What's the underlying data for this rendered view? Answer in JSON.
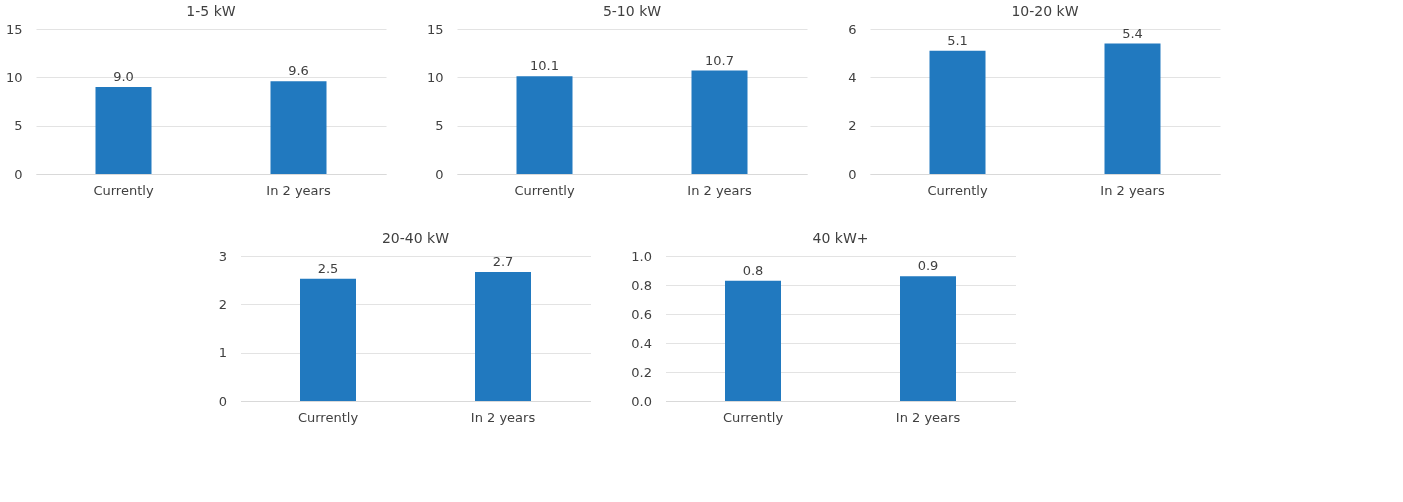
{
  "chart_data": [
    {
      "type": "bar",
      "title": "1-5 kW",
      "categories": [
        "Currently",
        "In 2 years"
      ],
      "values": [
        9.0,
        9.6
      ],
      "value_labels": [
        "9.0",
        "9.6"
      ],
      "color": "#2179bf",
      "ylim": [
        0,
        15
      ],
      "yticks": [
        0,
        5,
        10,
        15
      ],
      "grid": "y"
    },
    {
      "type": "bar",
      "title": "5-10 kW",
      "categories": [
        "Currently",
        "In 2 years"
      ],
      "values": [
        10.1,
        10.7
      ],
      "value_labels": [
        "10.1",
        "10.7"
      ],
      "color": "#2179bf",
      "ylim": [
        0,
        15
      ],
      "yticks": [
        0,
        5,
        10,
        15
      ],
      "grid": "y"
    },
    {
      "type": "bar",
      "title": "10-20 kW",
      "categories": [
        "Currently",
        "In 2 years"
      ],
      "values": [
        5.1,
        5.4
      ],
      "value_labels": [
        "5.1",
        "5.4"
      ],
      "color": "#2179bf",
      "ylim": [
        0,
        6
      ],
      "yticks": [
        0,
        2,
        4,
        6
      ],
      "grid": "y"
    },
    {
      "type": "bar",
      "title": "20-40 kW",
      "categories": [
        "Currently",
        "In 2 years"
      ],
      "values": [
        2.53,
        2.67
      ],
      "value_labels": [
        "2.5",
        "2.7"
      ],
      "color": "#2179bf",
      "ylim": [
        0,
        3
      ],
      "yticks": [
        0,
        1,
        2,
        3
      ],
      "grid": "y"
    },
    {
      "type": "bar",
      "title": "40 kW+",
      "categories": [
        "Currently",
        "In 2 years"
      ],
      "values": [
        0.83,
        0.86
      ],
      "value_labels": [
        "0.8",
        "0.9"
      ],
      "color": "#2179bf",
      "ylim": [
        0,
        1.0
      ],
      "yticks": [
        {
          "value": 0,
          "label": "0.0"
        },
        0.2,
        0.4,
        0.6,
        0.8,
        {
          "value": 1.0,
          "label": "1.0"
        }
      ],
      "grid": "y"
    }
  ]
}
